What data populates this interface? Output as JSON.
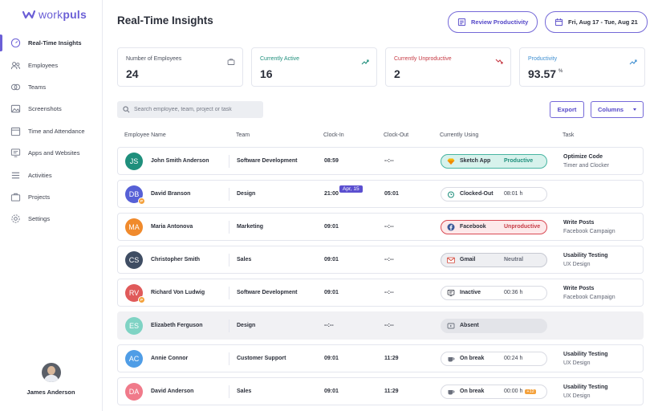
{
  "brand": {
    "name_light": "work",
    "name_bold": "puls"
  },
  "sidebar": {
    "items": [
      {
        "label": "Real-Time Insights",
        "icon": "gauge-icon",
        "active": true
      },
      {
        "label": "Employees",
        "icon": "users-icon"
      },
      {
        "label": "Teams",
        "icon": "teams-icon"
      },
      {
        "label": "Screenshots",
        "icon": "image-icon"
      },
      {
        "label": "Time and Attendance",
        "icon": "calendar-icon"
      },
      {
        "label": "Apps and Websites",
        "icon": "monitor-icon"
      },
      {
        "label": "Activities",
        "icon": "list-icon"
      },
      {
        "label": "Projects",
        "icon": "briefcase-icon"
      },
      {
        "label": "Settings",
        "icon": "gear-icon"
      }
    ],
    "user": {
      "name": "James Anderson"
    }
  },
  "header": {
    "title": "Real-Time Insights",
    "review_button": "Review Productivity",
    "date_range": "Fri, Aug 17 - Tue, Aug 21"
  },
  "cards": [
    {
      "title": "Number of Employees",
      "value": "24",
      "suffix": "",
      "title_color": "#4a4f5c",
      "icon": "briefcase-icon"
    },
    {
      "title": "Currently Active",
      "value": "16",
      "suffix": "",
      "title_color": "#1f8f7c",
      "icon": "trend-up-icon"
    },
    {
      "title": "Currently Unproductive",
      "value": "2",
      "suffix": "",
      "title_color": "#c63a44",
      "icon": "trend-down-icon"
    },
    {
      "title": "Productivity",
      "value": "93.57",
      "suffix": "%",
      "title_color": "#3f8fd1",
      "icon": "trend-up-icon"
    }
  ],
  "toolbar": {
    "search_placeholder": "Search employee, team, project or task",
    "export_label": "Export",
    "columns_label": "Columns"
  },
  "table": {
    "headers": [
      "Employee Name",
      "Team",
      "Clock-In",
      "Clock-Out",
      "Currently Using",
      "Task"
    ],
    "rows": [
      {
        "initials": "JS",
        "avatar_color": "#1f8f7c",
        "name": "John Smith Anderson",
        "team": "Software Development",
        "clock_in": "08:59",
        "clock_out": "--:--",
        "using": {
          "kind": "productive",
          "icon": "sketch-icon",
          "app": "Sketch App",
          "status": "Productive"
        },
        "task_title": "Optimize Code",
        "task_sub": "Timer and Clocker",
        "task_title_bold": false
      },
      {
        "initials": "DB",
        "avatar_color": "#5660d6",
        "badge": "P",
        "name": "David Branson",
        "team": "Design",
        "clock_in": "21:00",
        "date_tag": "Apr, 15",
        "clock_out": "05:01",
        "using": {
          "kind": "plain",
          "icon": "alarm-icon",
          "app": "Clocked-Out",
          "time": "08:01 h"
        },
        "task_title": "",
        "task_sub": ""
      },
      {
        "initials": "MA",
        "avatar_color": "#f08a2c",
        "name": "Maria Antonova",
        "team": "Marketing",
        "clock_in": "09:01",
        "clock_out": "--:--",
        "using": {
          "kind": "unproductive",
          "icon": "facebook-icon",
          "app": "Facebook",
          "status": "Unproductive"
        },
        "task_title": "Write Posts",
        "task_sub": "Facebook Campaign"
      },
      {
        "initials": "CS",
        "avatar_color": "#3f4d63",
        "name": "Christopher Smith",
        "team": "Sales",
        "clock_in": "09:01",
        "clock_out": "--:--",
        "using": {
          "kind": "neutral",
          "icon": "gmail-icon",
          "app": "Gmail",
          "status": "Neutral"
        },
        "task_title": "Usability Testing",
        "task_sub": "UX Design"
      },
      {
        "initials": "RV",
        "avatar_color": "#e05a5a",
        "badge": "P",
        "name": "Richard Von Ludwig",
        "team": "Software Development",
        "clock_in": "09:01",
        "clock_out": "--:--",
        "using": {
          "kind": "plain",
          "icon": "monitor-icon",
          "app": "Inactive",
          "time": "00:36 h"
        },
        "task_title": "Write Posts",
        "task_sub": "Facebook Campaign"
      },
      {
        "initials": "ES",
        "avatar_color": "#7fd3c4",
        "name": "Elizabeth Ferguson",
        "team": "Design",
        "clock_in": "--:--",
        "clock_out": "--:--",
        "muted": true,
        "using": {
          "kind": "absent",
          "icon": "absent-icon",
          "app": "Absent"
        },
        "task_title": "",
        "task_sub": ""
      },
      {
        "initials": "AC",
        "avatar_color": "#4f9de6",
        "name": "Annie Connor",
        "team": "Customer Support",
        "clock_in": "09:01",
        "clock_out": "11:29",
        "using": {
          "kind": "plain",
          "icon": "coffee-icon",
          "app": "On break",
          "time": "00:24 h"
        },
        "task_title": "Usability Testing",
        "task_sub": "UX Design"
      },
      {
        "initials": "DA",
        "avatar_color": "#f07a8a",
        "name": "David Anderson",
        "team": "Sales",
        "clock_in": "09:01",
        "clock_out": "11:29",
        "using": {
          "kind": "plain",
          "icon": "coffee-icon",
          "app": "On break",
          "time": "00:00 h",
          "overtime": "+12"
        },
        "task_title": "Usability Testing",
        "task_sub": "UX Design"
      }
    ]
  },
  "colors": {
    "accent": "#6b5fd6",
    "productive": "#1f8f7c",
    "unproductive": "#c63a44"
  }
}
